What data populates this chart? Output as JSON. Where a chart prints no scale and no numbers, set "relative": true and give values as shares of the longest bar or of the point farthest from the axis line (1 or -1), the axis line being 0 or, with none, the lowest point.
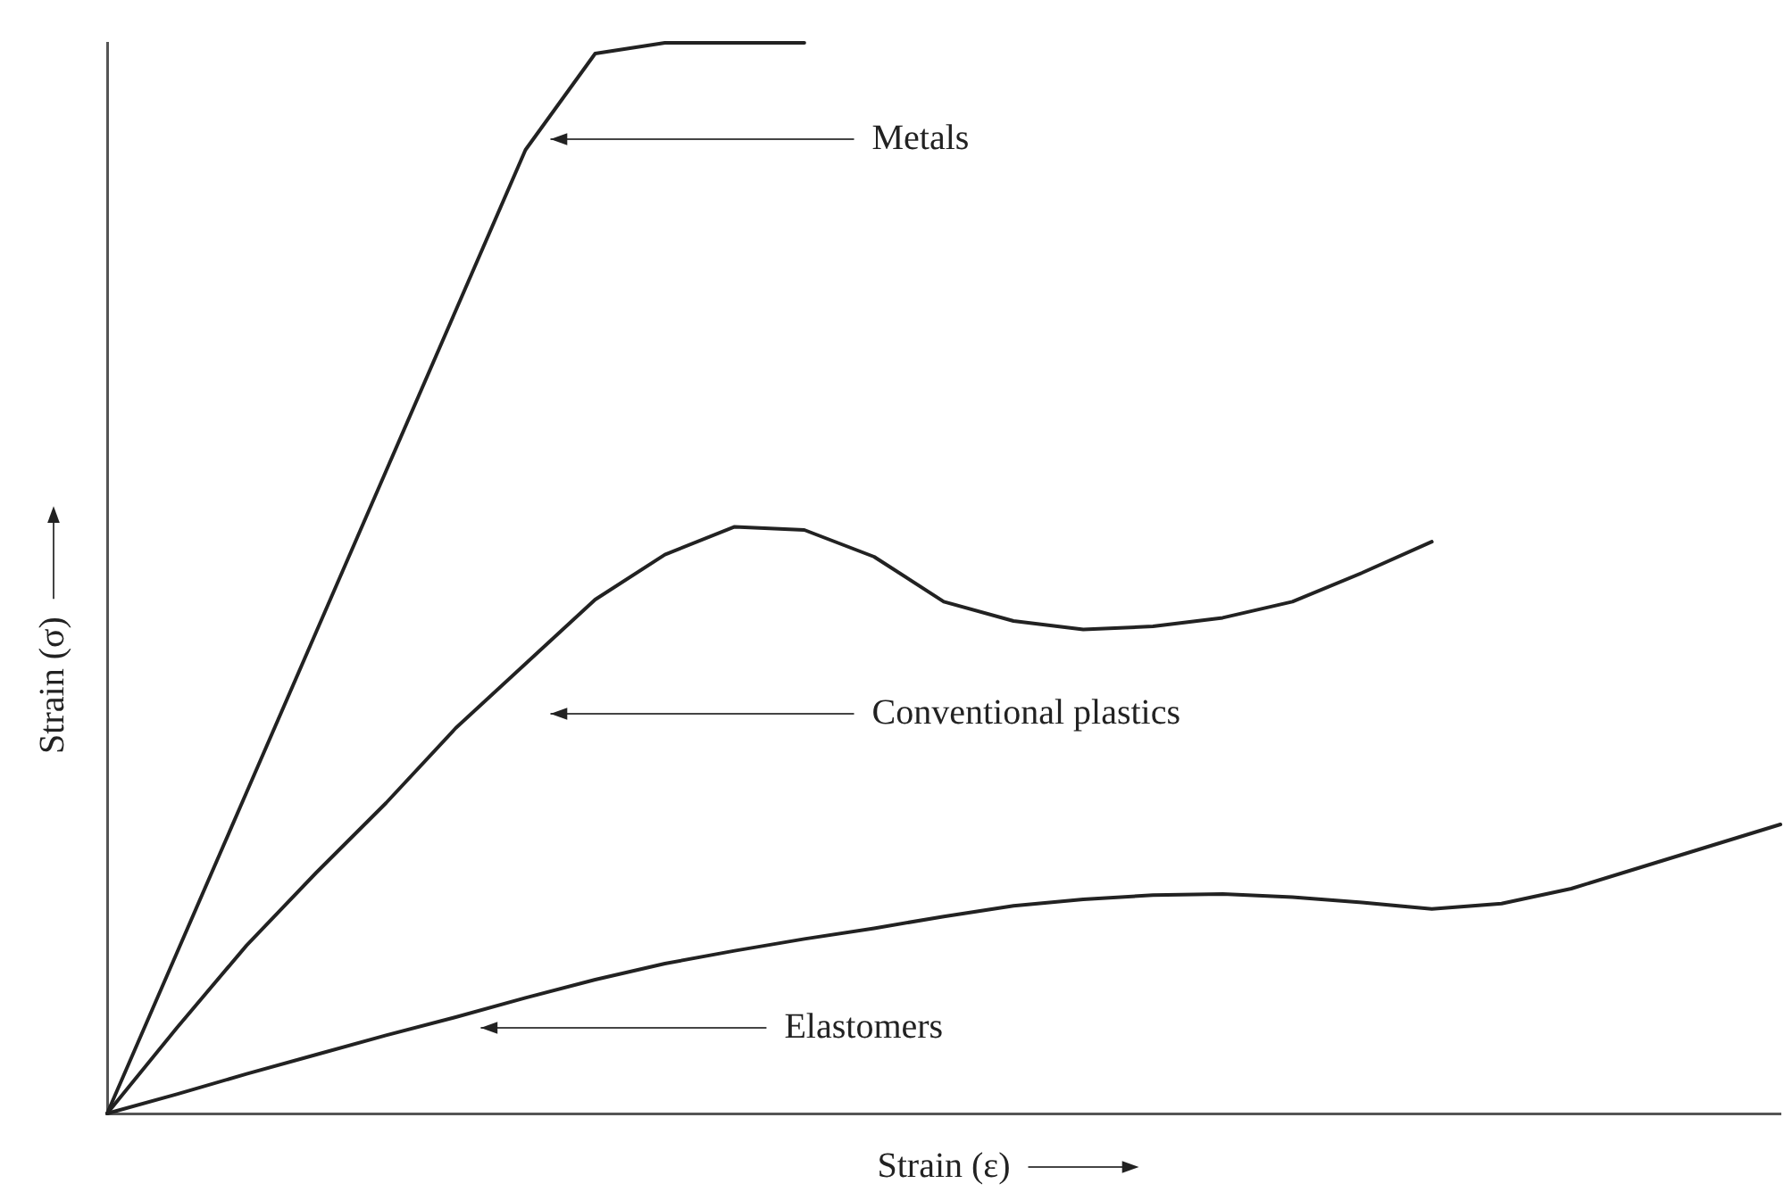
{
  "chart_data": {
    "type": "line",
    "relative": true,
    "xlabel": "Strain (ε)",
    "ylabel": "Strain (σ)",
    "legend": false,
    "grid": false,
    "marker": "none",
    "line_style": "solid",
    "categories": [
      null,
      null,
      null,
      null,
      null,
      null,
      null,
      null,
      null,
      null,
      null,
      null,
      null,
      null,
      null,
      null,
      null,
      null,
      null,
      null,
      null,
      null,
      null,
      null,
      null
    ],
    "series": [
      {
        "name": "Metals",
        "color": "#222222",
        "values": [
          0,
          0.15,
          0.3,
          0.45,
          0.6,
          0.75,
          0.9,
          0.99,
          1,
          1,
          1,
          null,
          null,
          null,
          null,
          null,
          null,
          null,
          null,
          null,
          null,
          null,
          null,
          null,
          null
        ]
      },
      {
        "name": "Conventional plastics",
        "color": "#222222",
        "values": [
          0,
          0.08,
          0.157,
          0.225,
          0.29,
          0.36,
          0.42,
          0.48,
          0.522,
          0.548,
          0.545,
          0.52,
          0.478,
          0.46,
          0.452,
          0.455,
          0.463,
          0.478,
          0.505,
          0.534,
          null,
          null,
          null,
          null,
          null
        ]
      },
      {
        "name": "Elastomers",
        "color": "#222222",
        "values": [
          0,
          0.018,
          0.037,
          0.055,
          0.073,
          0.09,
          0.108,
          0.125,
          0.14,
          0.152,
          0.163,
          0.173,
          0.184,
          0.194,
          0.2,
          0.204,
          0.205,
          0.202,
          0.197,
          0.191,
          0.196,
          0.21,
          0.23,
          0.25,
          0.27
        ]
      }
    ]
  }
}
